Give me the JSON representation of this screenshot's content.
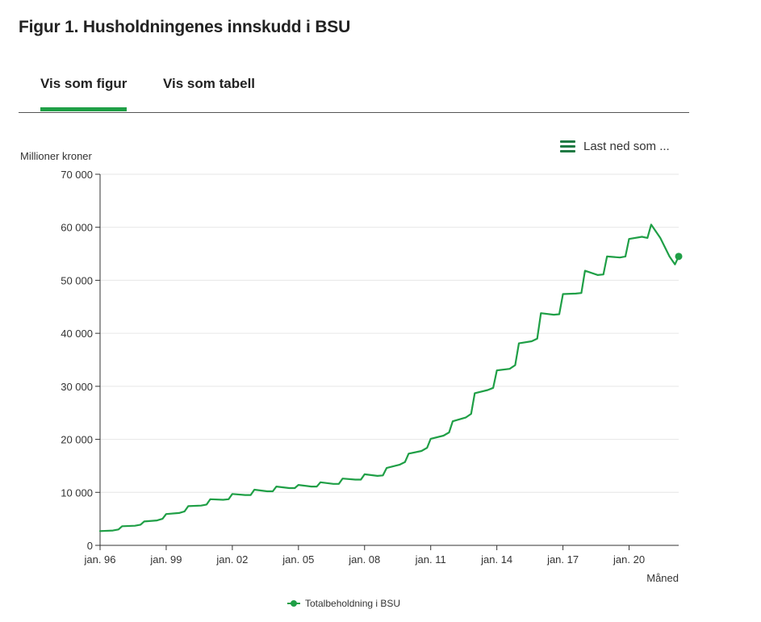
{
  "page": {
    "title": "Figur 1. Husholdningenes innskudd i BSU",
    "tabs": [
      {
        "label": "Vis som figur",
        "active": true
      },
      {
        "label": "Vis som tabell",
        "active": false
      }
    ],
    "download_label": "Last ned som ...",
    "download_icon": "menu-icon",
    "accent_color": "#1f9f46"
  },
  "chart_data": {
    "type": "line",
    "ylabel": "Millioner kroner",
    "xlabel": "Måned",
    "ylim": [
      0,
      70000
    ],
    "yticks": [
      {
        "value": 0,
        "label": "0"
      },
      {
        "value": 10000,
        "label": "10 000"
      },
      {
        "value": 20000,
        "label": "20 000"
      },
      {
        "value": 30000,
        "label": "30 000"
      },
      {
        "value": 40000,
        "label": "40 000"
      },
      {
        "value": 50000,
        "label": "50 000"
      },
      {
        "value": 60000,
        "label": "60 000"
      },
      {
        "value": 70000,
        "label": "70 000"
      }
    ],
    "xlim": [
      "1996-01",
      "2022-04"
    ],
    "xticks": [
      {
        "value": "1996-01",
        "label": "jan. 96"
      },
      {
        "value": "1999-01",
        "label": "jan. 99"
      },
      {
        "value": "2002-01",
        "label": "jan. 02"
      },
      {
        "value": "2005-01",
        "label": "jan. 05"
      },
      {
        "value": "2008-01",
        "label": "jan. 08"
      },
      {
        "value": "2011-01",
        "label": "jan. 11"
      },
      {
        "value": "2014-01",
        "label": "jan. 14"
      },
      {
        "value": "2017-01",
        "label": "jan. 17"
      },
      {
        "value": "2020-01",
        "label": "jan. 20"
      }
    ],
    "grid": true,
    "legend_position": "bottom",
    "series": [
      {
        "name": "Totalbeholdning i BSU",
        "color": "#1f9f46",
        "x": [
          "1996-01",
          "1996-08",
          "1996-11",
          "1997-01",
          "1997-08",
          "1997-11",
          "1998-01",
          "1998-08",
          "1998-11",
          "1999-01",
          "1999-08",
          "1999-11",
          "2000-01",
          "2000-08",
          "2000-11",
          "2001-01",
          "2001-08",
          "2001-11",
          "2002-01",
          "2002-08",
          "2002-11",
          "2003-01",
          "2003-08",
          "2003-11",
          "2004-01",
          "2004-08",
          "2004-11",
          "2005-01",
          "2005-08",
          "2005-11",
          "2006-01",
          "2006-08",
          "2006-11",
          "2007-01",
          "2007-08",
          "2007-11",
          "2008-01",
          "2008-08",
          "2008-11",
          "2009-01",
          "2009-08",
          "2009-11",
          "2010-01",
          "2010-08",
          "2010-11",
          "2011-01",
          "2011-08",
          "2011-11",
          "2012-01",
          "2012-08",
          "2012-11",
          "2013-01",
          "2013-08",
          "2013-11",
          "2014-01",
          "2014-08",
          "2014-11",
          "2015-01",
          "2015-08",
          "2015-11",
          "2016-01",
          "2016-08",
          "2016-11",
          "2017-01",
          "2017-08",
          "2017-11",
          "2018-01",
          "2018-08",
          "2018-11",
          "2019-01",
          "2019-08",
          "2019-11",
          "2020-01",
          "2020-08",
          "2020-11",
          "2021-01",
          "2021-06",
          "2021-11",
          "2022-02",
          "2022-04"
        ],
        "values": [
          2700,
          2800,
          3000,
          3600,
          3700,
          3900,
          4500,
          4700,
          5000,
          5900,
          6100,
          6400,
          7400,
          7500,
          7700,
          8700,
          8600,
          8700,
          9700,
          9500,
          9500,
          10500,
          10200,
          10200,
          11100,
          10800,
          10800,
          11400,
          11100,
          11100,
          11900,
          11600,
          11600,
          12600,
          12400,
          12400,
          13400,
          13100,
          13200,
          14600,
          15200,
          15700,
          17300,
          17800,
          18400,
          20100,
          20700,
          21300,
          23400,
          24100,
          24800,
          28700,
          29300,
          29700,
          33000,
          33300,
          34000,
          38100,
          38500,
          39000,
          43800,
          43500,
          43600,
          47400,
          47500,
          47600,
          51800,
          51000,
          51100,
          54500,
          54300,
          54500,
          57800,
          58200,
          58000,
          60500,
          58000,
          54500,
          53000,
          54500
        ]
      }
    ]
  }
}
